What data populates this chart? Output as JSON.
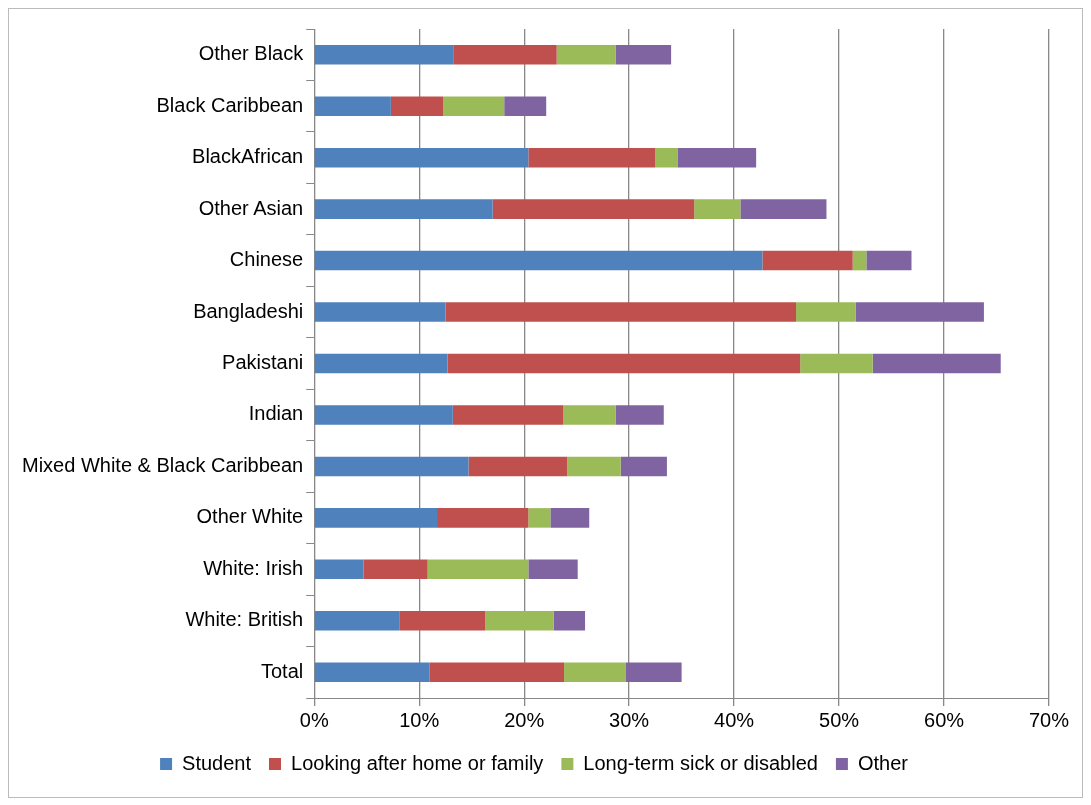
{
  "chart_data": {
    "type": "bar",
    "orientation": "horizontal",
    "stacked": true,
    "categories": [
      "Other Black",
      "Black Caribbean",
      "BlackAfrican",
      "Other Asian",
      "Chinese",
      "Bangladeshi",
      "Pakistani",
      "Indian",
      "Mixed White & Black Caribbean",
      "Other White",
      "White: Irish",
      "White: British",
      "Total"
    ],
    "series": [
      {
        "name": "Student",
        "color": "#4f81bd",
        "values": [
          13.3,
          7.3,
          20.4,
          17.0,
          42.7,
          12.5,
          12.7,
          13.2,
          14.7,
          11.7,
          4.7,
          8.1,
          11.0
        ]
      },
      {
        "name": "Looking after home or family",
        "color": "#c0504d",
        "values": [
          9.8,
          5.0,
          12.1,
          19.2,
          8.6,
          33.4,
          33.6,
          10.5,
          9.4,
          8.7,
          6.1,
          8.2,
          12.8
        ]
      },
      {
        "name": "Long-term sick or disabled",
        "color": "#9bbb59",
        "values": [
          5.6,
          5.8,
          2.1,
          4.4,
          1.3,
          5.7,
          6.9,
          5.0,
          5.1,
          2.1,
          9.6,
          6.5,
          5.9
        ]
      },
      {
        "name": "Other",
        "color": "#8064a2",
        "values": [
          5.3,
          4.0,
          7.5,
          8.2,
          4.3,
          12.2,
          12.2,
          4.6,
          4.4,
          3.7,
          4.7,
          3.0,
          5.3
        ]
      }
    ],
    "xlim": [
      0,
      70
    ],
    "xticks": [
      {
        "value": 0,
        "label": "0%"
      },
      {
        "value": 10,
        "label": "10%"
      },
      {
        "value": 20,
        "label": "20%"
      },
      {
        "value": 30,
        "label": "30%"
      },
      {
        "value": 40,
        "label": "40%"
      },
      {
        "value": 50,
        "label": "50%"
      },
      {
        "value": 60,
        "label": "60%"
      },
      {
        "value": 70,
        "label": "70%"
      }
    ],
    "grid": "x",
    "legend": "bottom"
  }
}
